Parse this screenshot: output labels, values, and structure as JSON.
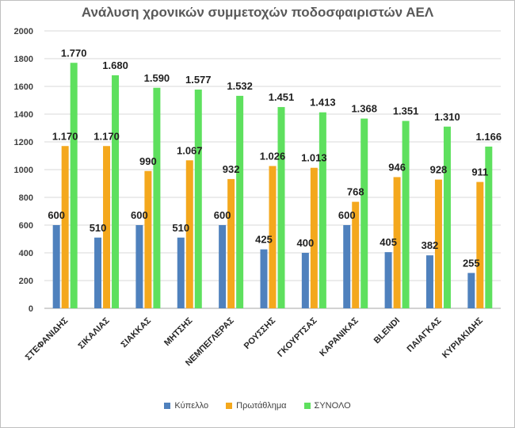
{
  "chart_data": {
    "type": "bar",
    "title": "Ανάλυση χρονικών συμμετοχών ποδοσφαιριστών ΑΕΛ",
    "categories": [
      "ΣΤΕΦΑΝΙΔΗΣ",
      "ΣΙΚΑΛΙΑΣ",
      "ΣΙΑΚΚΑΣ",
      "ΜΗΤΣΗΣ",
      "ΝΕΜΠΕΓΛΕΡΑΣ",
      "ΡΟΥΣΣΗΣ",
      "ΓΚΟΥΡΤΣΑΣ",
      "ΚΑΡΑΝΙΚΑΣ",
      "BLENDI",
      "ΠΑΙΑΓΚΑΣ",
      "ΚΥΡΙΑΚΙΔΗΣ"
    ],
    "series": [
      {
        "name": "Κύπελλο",
        "color": "#4f81bd",
        "values": [
          600,
          510,
          600,
          510,
          600,
          425,
          400,
          600,
          405,
          382,
          255
        ],
        "labels": [
          "600",
          "510",
          "600",
          "510",
          "600",
          "425",
          "400",
          "600",
          "405",
          "382",
          "255"
        ]
      },
      {
        "name": "Πρωτάθλημα",
        "color": "#f4a81d",
        "values": [
          1170,
          1170,
          990,
          1067,
          932,
          1026,
          1013,
          768,
          946,
          928,
          911
        ],
        "labels": [
          "1.170",
          "1.170",
          "990",
          "1.067",
          "932",
          "1.026",
          "1.013",
          "768",
          "946",
          "928",
          "911"
        ]
      },
      {
        "name": "ΣΥΝΟΛΟ",
        "color": "#5ee05e",
        "values": [
          1770,
          1680,
          1590,
          1577,
          1532,
          1451,
          1413,
          1368,
          1351,
          1310,
          1166
        ],
        "labels": [
          "1.770",
          "1.680",
          "1.590",
          "1.577",
          "1.532",
          "1.451",
          "1.413",
          "1.368",
          "1.351",
          "1.310",
          "1.166"
        ]
      }
    ],
    "ylim": [
      0,
      2000
    ],
    "yticks": [
      "0",
      "200",
      "400",
      "600",
      "800",
      "1000",
      "1200",
      "1400",
      "1600",
      "1800",
      "2000"
    ],
    "grid": true,
    "legend_position": "bottom"
  }
}
